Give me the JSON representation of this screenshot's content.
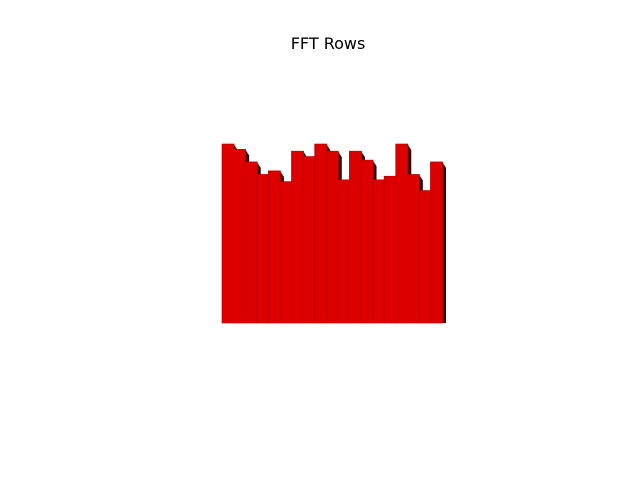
{
  "chart_data": {
    "type": "bar",
    "title": "FFT Rows",
    "xlabel": "",
    "ylabel": "",
    "grid": false,
    "axes_visible": false,
    "bar_color": "#dd0000",
    "edge_color": "#b30000",
    "shadow_color": "#3a0000",
    "values": [
      1.0,
      0.97,
      0.9,
      0.83,
      0.85,
      0.79,
      0.96,
      0.93,
      1.0,
      0.96,
      0.8,
      0.96,
      0.91,
      0.8,
      0.82,
      1.0,
      0.83,
      0.74,
      0.9
    ],
    "ylim": [
      0,
      1.0
    ]
  }
}
